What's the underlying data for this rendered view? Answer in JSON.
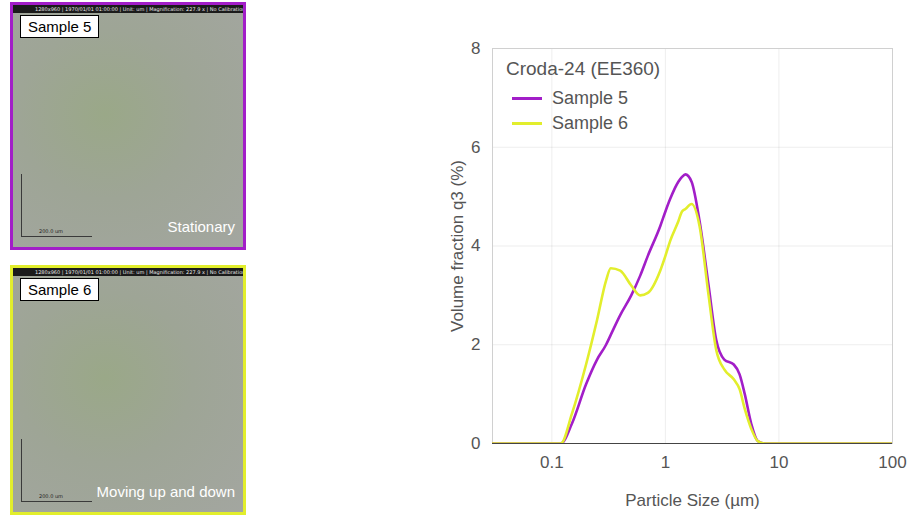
{
  "panels": [
    {
      "label": "Sample 5",
      "caption": "Stationary",
      "header": "1280x960 | 1970/01/01 01:00:00 | Unit: um | Magnification: 227.9 x | No Calibration",
      "scale_bar": "200.0 um",
      "color": "#a21ec8"
    },
    {
      "label": "Sample 6",
      "caption": "Moving up and down",
      "header": "1280x960 | 1970/01/01 01:00:00 | Unit: um | Magnification: 227.9 x | No Calibration",
      "scale_bar": "200.0 um",
      "color": "#e2ee2c"
    }
  ],
  "chart_data": {
    "type": "line",
    "title": "Croda-24 (EE360)",
    "x_label": "Particle Size (µm)",
    "y_label": "Volume fraction q3 (%)",
    "log": "x",
    "xlim": [
      0.03,
      100
    ],
    "xticks": [
      0.1,
      1,
      10,
      100
    ],
    "ylim": [
      0,
      8
    ],
    "yticks": [
      0,
      2,
      4,
      6,
      8
    ],
    "grid": true,
    "legend": "top-left",
    "x": [
      0.03,
      0.12,
      0.15,
      0.2,
      0.25,
      0.3,
      0.33,
      0.4,
      0.5,
      0.6,
      0.7,
      0.9,
      1.0,
      1.1,
      1.3,
      1.4,
      1.5,
      1.7,
      2.0,
      2.4,
      2.8,
      3.3,
      4.0,
      4.5,
      5.0,
      5.7,
      6.5,
      7.5,
      100
    ],
    "series": [
      {
        "name": "Sample 5",
        "color": "#a21ec8",
        "values": [
          0,
          0,
          0.4,
          1.2,
          1.7,
          2.0,
          2.2,
          2.6,
          3.0,
          3.4,
          3.8,
          4.4,
          4.7,
          4.95,
          5.3,
          5.4,
          5.45,
          5.3,
          4.5,
          3.2,
          2.1,
          1.7,
          1.6,
          1.4,
          1.0,
          0.4,
          0.05,
          0,
          0
        ]
      },
      {
        "name": "Sample 6",
        "color": "#e2ee2c",
        "values": [
          0,
          0,
          0.6,
          1.6,
          2.5,
          3.3,
          3.55,
          3.5,
          3.2,
          3.0,
          3.05,
          3.5,
          3.8,
          4.1,
          4.5,
          4.7,
          4.75,
          4.85,
          4.4,
          3.0,
          1.9,
          1.5,
          1.3,
          1.1,
          0.7,
          0.3,
          0.05,
          0,
          0
        ]
      }
    ]
  }
}
